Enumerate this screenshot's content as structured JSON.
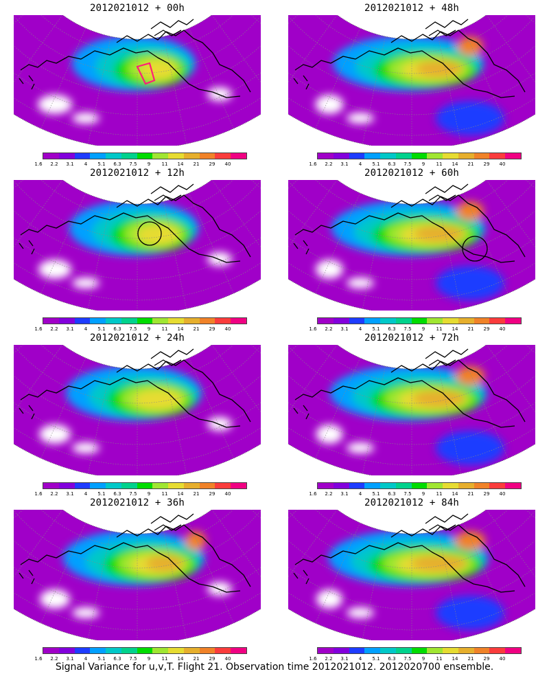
{
  "panels": [
    {
      "title": "2012021012 + 00h",
      "marker": "polygon"
    },
    {
      "title": "2012021012 + 48h",
      "marker": "none"
    },
    {
      "title": "2012021012 + 12h",
      "marker": "circle1"
    },
    {
      "title": "2012021012 + 60h",
      "marker": "circle2"
    },
    {
      "title": "2012021012 + 24h",
      "marker": "none"
    },
    {
      "title": "2012021012 + 72h",
      "marker": "none"
    },
    {
      "title": "2012021012 + 36h",
      "marker": "none"
    },
    {
      "title": "2012021012 + 84h",
      "marker": "none"
    }
  ],
  "colorbar": {
    "labels": [
      "1.6",
      "2.2",
      "3.1",
      "4",
      "5.1",
      "6.3",
      "7.5",
      "9",
      "11",
      "14",
      "21",
      "29",
      "40"
    ],
    "colors": [
      "#a000c8",
      "#8200dc",
      "#1e3cff",
      "#00a0ff",
      "#00c8c8",
      "#00d28c",
      "#00dc00",
      "#a0e632",
      "#e6dc32",
      "#e6af2d",
      "#f08228",
      "#fa3c3c",
      "#f00082"
    ]
  },
  "caption": "Signal Variance for u,v,T. Flight 21. Observation time 2012021012. 2012020700 ensemble."
}
